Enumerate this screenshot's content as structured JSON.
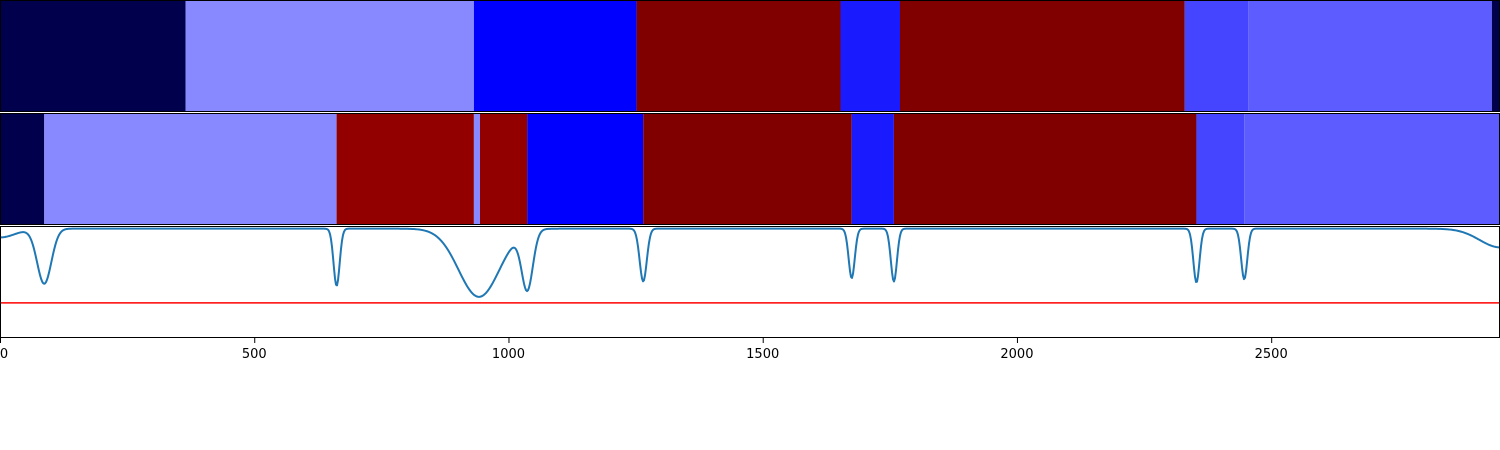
{
  "chart_data": {
    "type": "segmentation-timeline",
    "xlim": [
      0,
      2950
    ],
    "x_ticks": [
      0,
      500,
      1000,
      1500,
      2000,
      2500
    ],
    "x_tick_labels": [
      "0",
      "500",
      "1000",
      "1500",
      "2000",
      "2500"
    ],
    "rows": [
      {
        "segments": [
          {
            "start": 0,
            "end": 365,
            "color": "#00004d"
          },
          {
            "start": 365,
            "end": 932,
            "color": "#8888ff"
          },
          {
            "start": 932,
            "end": 1252,
            "color": "#0000ff"
          },
          {
            "start": 1252,
            "end": 1653,
            "color": "#800000"
          },
          {
            "start": 1653,
            "end": 1770,
            "color": "#1a1aff"
          },
          {
            "start": 1770,
            "end": 2330,
            "color": "#800000"
          },
          {
            "start": 2330,
            "end": 2455,
            "color": "#4545ff"
          },
          {
            "start": 2455,
            "end": 2934,
            "color": "#5c5cff"
          },
          {
            "start": 2934,
            "end": 2950,
            "color": "#00004d"
          }
        ]
      },
      {
        "segments": [
          {
            "start": 0,
            "end": 87,
            "color": "#00004d"
          },
          {
            "start": 87,
            "end": 662,
            "color": "#8888ff"
          },
          {
            "start": 662,
            "end": 932,
            "color": "#920000"
          },
          {
            "start": 932,
            "end": 944,
            "color": "#8888ff"
          },
          {
            "start": 944,
            "end": 1037,
            "color": "#920000"
          },
          {
            "start": 1037,
            "end": 1265,
            "color": "#0000ff"
          },
          {
            "start": 1265,
            "end": 1675,
            "color": "#800000"
          },
          {
            "start": 1675,
            "end": 1758,
            "color": "#1a1aff"
          },
          {
            "start": 1758,
            "end": 2353,
            "color": "#800000"
          },
          {
            "start": 2353,
            "end": 2447,
            "color": "#4545ff"
          },
          {
            "start": 2447,
            "end": 2950,
            "color": "#5c5cff"
          }
        ]
      }
    ],
    "signal": {
      "color": "#1f77b4",
      "ylim": [
        0,
        1
      ],
      "baseline": 0.985,
      "dips": [
        {
          "x": 0,
          "depth": 0.08,
          "width": 30
        },
        {
          "x": 87,
          "depth": 0.5,
          "width": 14
        },
        {
          "x": 662,
          "depth": 0.52,
          "width": 6
        },
        {
          "x": 942,
          "depth": 0.62,
          "width": 40
        },
        {
          "x": 1037,
          "depth": 0.53,
          "width": 11
        },
        {
          "x": 1265,
          "depth": 0.48,
          "width": 7
        },
        {
          "x": 1675,
          "depth": 0.45,
          "width": 6
        },
        {
          "x": 1758,
          "depth": 0.48,
          "width": 6
        },
        {
          "x": 2353,
          "depth": 0.49,
          "width": 6
        },
        {
          "x": 2447,
          "depth": 0.46,
          "width": 6
        },
        {
          "x": 2950,
          "depth": 0.17,
          "width": 40
        }
      ],
      "threshold": 0.31,
      "threshold_color": "#ff0000"
    }
  }
}
